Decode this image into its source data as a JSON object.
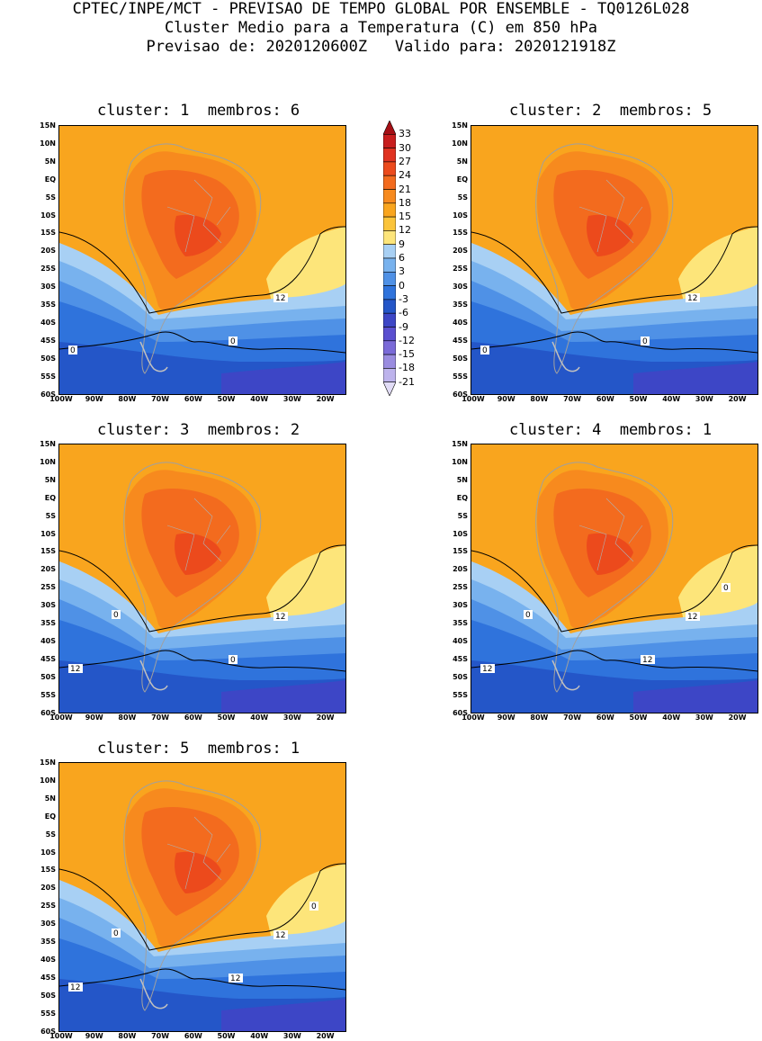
{
  "header": {
    "line1": "CPTEC/INPE/MCT - PREVISAO DE TEMPO GLOBAL POR ENSEMBLE - TQ0126L028",
    "line2": "Cluster Medio para a Temperatura (C) em 850 hPa",
    "line3": "Previsao de: 2020120600Z   Valido para: 2020121918Z"
  },
  "panels": [
    {
      "title": "cluster: 1  membros: 6",
      "contour_labels": [
        "12",
        "0",
        "0"
      ]
    },
    {
      "title": "cluster: 2  membros: 5",
      "contour_labels": [
        "12",
        "0",
        "0"
      ]
    },
    {
      "title": "cluster: 3  membros: 2",
      "contour_labels": [
        "12",
        "12",
        "0",
        "0"
      ]
    },
    {
      "title": "cluster: 4  membros: 1",
      "contour_labels": [
        "12",
        "12",
        "12",
        "0",
        "0"
      ]
    },
    {
      "title": "cluster: 5  membros: 1",
      "contour_labels": [
        "12",
        "12",
        "12",
        "0",
        "0"
      ]
    }
  ],
  "lat_ticks": [
    "15N",
    "10N",
    "5N",
    "EQ",
    "5S",
    "10S",
    "15S",
    "20S",
    "25S",
    "30S",
    "35S",
    "40S",
    "45S",
    "50S",
    "55S",
    "60S"
  ],
  "lon_ticks": [
    "100W",
    "90W",
    "80W",
    "70W",
    "60W",
    "50W",
    "40W",
    "30W",
    "20W"
  ],
  "colorbar": {
    "labels": [
      "33",
      "30",
      "27",
      "24",
      "21",
      "18",
      "15",
      "12",
      "9",
      "6",
      "3",
      "0",
      "-3",
      "-6",
      "-9",
      "-12",
      "-15",
      "-18",
      "-21"
    ],
    "colors": [
      "#a50f15",
      "#c81e1e",
      "#e03220",
      "#ec4a1c",
      "#f36b1e",
      "#f78a1e",
      "#f9a51e",
      "#fbc43a",
      "#fde57a",
      "#a8d0f4",
      "#78b2ee",
      "#4f91e6",
      "#2f73dc",
      "#2456c8",
      "#3d46c6",
      "#5a4fd0",
      "#7a6ad8",
      "#9a8ce0",
      "#bdb3ec",
      "#e1dcf6"
    ]
  }
}
